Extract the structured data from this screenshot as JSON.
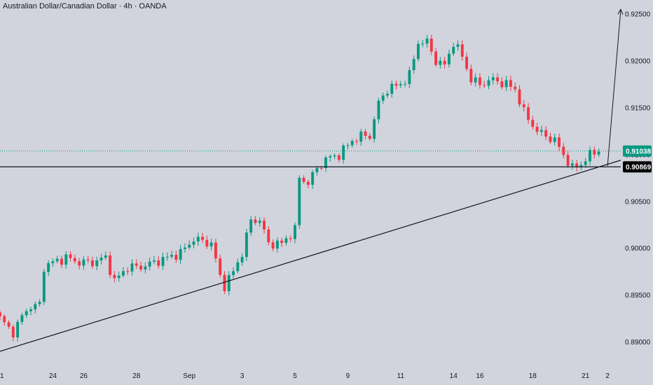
{
  "chart_data": {
    "type": "candlestick",
    "title": "Australian Dollar/Canadian Dollar · 4h · OANDA",
    "ylim": [
      0.8875,
      0.9265
    ],
    "y_ticks": [
      {
        "value": 0.925,
        "label": "0.92500"
      },
      {
        "value": 0.92,
        "label": "0.92000"
      },
      {
        "value": 0.915,
        "label": "0.91500"
      },
      {
        "value": 0.91,
        "label": "0.91000"
      },
      {
        "value": 0.905,
        "label": "0.90500"
      },
      {
        "value": 0.9,
        "label": "0.90000"
      },
      {
        "value": 0.895,
        "label": "0.89500"
      },
      {
        "value": 0.89,
        "label": "0.89000"
      }
    ],
    "x_ticks": [
      {
        "index": 0,
        "label": "21"
      },
      {
        "index": 12,
        "label": "24"
      },
      {
        "index": 19,
        "label": "26"
      },
      {
        "index": 31,
        "label": "28"
      },
      {
        "index": 43,
        "label": "Sep"
      },
      {
        "index": 55,
        "label": "3"
      },
      {
        "index": 67,
        "label": "5"
      },
      {
        "index": 79,
        "label": "9"
      },
      {
        "index": 91,
        "label": "11"
      },
      {
        "index": 103,
        "label": "14"
      },
      {
        "index": 109,
        "label": "16"
      },
      {
        "index": 121,
        "label": "18"
      },
      {
        "index": 133,
        "label": "21"
      },
      {
        "index": 138,
        "label": "2"
      }
    ],
    "waypoints": [
      [
        0,
        0.8925
      ],
      [
        3,
        0.891
      ],
      [
        6,
        0.8935
      ],
      [
        9,
        0.894
      ],
      [
        10,
        0.898
      ],
      [
        12,
        0.8985
      ],
      [
        15,
        0.899
      ],
      [
        18,
        0.8985
      ],
      [
        21,
        0.8985
      ],
      [
        24,
        0.899
      ],
      [
        26,
        0.8965
      ],
      [
        29,
        0.898
      ],
      [
        32,
        0.898
      ],
      [
        35,
        0.8985
      ],
      [
        38,
        0.899
      ],
      [
        41,
        0.8995
      ],
      [
        44,
        0.901
      ],
      [
        48,
        0.9005
      ],
      [
        50,
        0.897
      ],
      [
        51,
        0.896
      ],
      [
        53,
        0.8975
      ],
      [
        55,
        0.8995
      ],
      [
        57,
        0.903
      ],
      [
        59,
        0.903
      ],
      [
        61,
        0.9005
      ],
      [
        64,
        0.9005
      ],
      [
        67,
        0.902
      ],
      [
        68,
        0.9075
      ],
      [
        70,
        0.907
      ],
      [
        72,
        0.9085
      ],
      [
        74,
        0.9095
      ],
      [
        77,
        0.91
      ],
      [
        80,
        0.9115
      ],
      [
        82,
        0.912
      ],
      [
        84,
        0.912
      ],
      [
        86,
        0.9155
      ],
      [
        88,
        0.917
      ],
      [
        91,
        0.9175
      ],
      [
        93,
        0.9185
      ],
      [
        95,
        0.922
      ],
      [
        97,
        0.922
      ],
      [
        99,
        0.92
      ],
      [
        101,
        0.9195
      ],
      [
        103,
        0.922
      ],
      [
        105,
        0.9205
      ],
      [
        107,
        0.918
      ],
      [
        109,
        0.9175
      ],
      [
        112,
        0.918
      ],
      [
        115,
        0.9175
      ],
      [
        117,
        0.917
      ],
      [
        119,
        0.9145
      ],
      [
        122,
        0.9125
      ],
      [
        124,
        0.912
      ],
      [
        126,
        0.9115
      ],
      [
        128,
        0.91
      ],
      [
        130,
        0.9085
      ],
      [
        132,
        0.909
      ],
      [
        134,
        0.91
      ],
      [
        136,
        0.9103
      ]
    ],
    "trendline": {
      "from": [
        0,
        0.889
      ],
      "to": [
        141,
        0.9094
      ]
    },
    "projection": {
      "from": [
        138,
        0.9088
      ],
      "to": [
        141,
        0.9255
      ]
    },
    "current_price": {
      "value": 0.91038,
      "label": "0.91038",
      "color": "#089981"
    },
    "horizontal_level": {
      "value": 0.90869,
      "label": "0.90869"
    },
    "colors": {
      "up": "#089981",
      "down": "#f23645",
      "background": "#d1d4dc",
      "line": "#131722"
    }
  }
}
